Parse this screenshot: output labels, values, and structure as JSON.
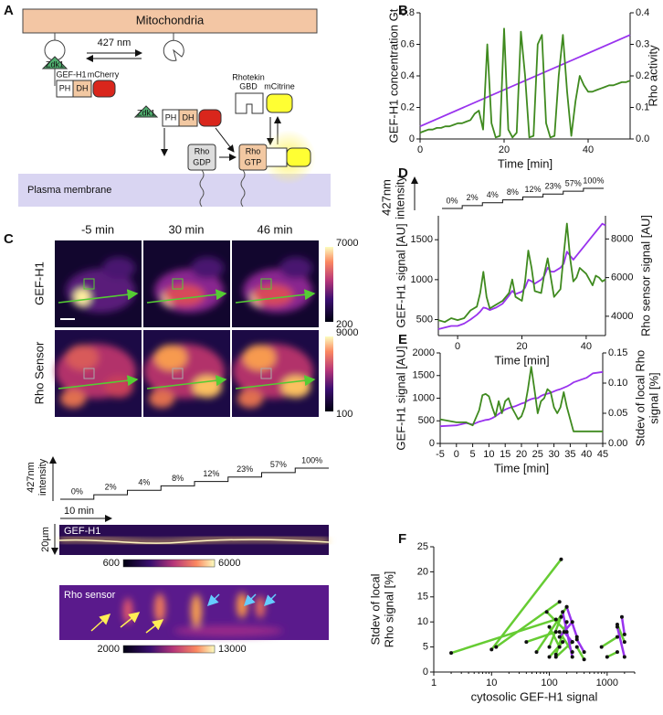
{
  "panel_labels": [
    "A",
    "B",
    "C",
    "D",
    "E",
    "F"
  ],
  "diagram": {
    "organelle": "Mitochondria",
    "light": "427 nm",
    "anchors": [
      "Zdk1",
      "Zdk1"
    ],
    "gef": "GEF-H1",
    "gef_tag": "mCherry",
    "domains": [
      "PH",
      "DH"
    ],
    "domains_bound": [
      "PH",
      "DH"
    ],
    "sensor_gbd": [
      "Rhotekin",
      "GBD"
    ],
    "sensor_tag": "mCitrine",
    "rho_gdp": [
      "Rho",
      "GDP"
    ],
    "rho_gtp": [
      "Rho",
      "GTP"
    ],
    "membrane": "Plasma membrane"
  },
  "imaging": {
    "times": [
      "-5 min",
      "30 min",
      "46 min"
    ],
    "rows": [
      "GEF-H1",
      "Rho Sensor"
    ],
    "colorbars": [
      {
        "max": 7000,
        "min": 200
      },
      {
        "max": 9000,
        "min": 100
      }
    ]
  },
  "kymograph": {
    "stim_label": [
      "427nm",
      "intensity"
    ],
    "steps": [
      "0%",
      "2%",
      "4%",
      "8%",
      "12%",
      "23%",
      "57%",
      "100%"
    ],
    "time_scale": "10 min",
    "space_scale": "20µm",
    "channels": [
      {
        "name": "GEF-H1",
        "min": 600,
        "max": 6000
      },
      {
        "name": "Rho sensor",
        "min": 2000,
        "max": 13000
      }
    ]
  },
  "chart_data": [
    {
      "type": "line",
      "xlabel": "Time [min]",
      "ylabel": [
        "GEF-H1 concentration Gt"
      ],
      "y2label": [
        "Rho activity"
      ],
      "xlim": [
        0,
        50
      ],
      "xticks": [
        0,
        20,
        40
      ],
      "ylim": [
        0,
        0.8
      ],
      "yticks": [
        0,
        0.2,
        0.4,
        0.6,
        0.8
      ],
      "y2lim": [
        0,
        0.4
      ],
      "y2ticks": [
        {
          "value": 0,
          "label": "0.0"
        },
        0.1,
        0.2,
        0.3,
        0.4
      ],
      "series": [
        {
          "color": "#9933ee",
          "x": [
            0,
            50
          ],
          "values": [
            0.08,
            0.66
          ]
        },
        {
          "color": "#3f8a1f",
          "axis": "y2",
          "x": [
            0,
            1,
            2,
            3,
            4,
            5,
            6,
            7,
            8,
            9,
            10,
            11,
            12,
            13,
            14,
            15,
            16,
            17,
            18,
            19,
            20,
            21,
            22,
            23,
            24,
            25,
            26,
            27,
            28,
            29,
            30,
            31,
            32,
            33,
            34,
            35,
            36,
            37,
            38,
            39,
            40,
            41,
            42,
            43,
            44,
            45,
            46,
            47,
            48,
            49,
            50
          ],
          "values": [
            0.02,
            0.025,
            0.03,
            0.03,
            0.035,
            0.035,
            0.04,
            0.04,
            0.045,
            0.05,
            0.05,
            0.055,
            0.06,
            0.08,
            0.09,
            0.03,
            0.3,
            0.05,
            0.005,
            0.01,
            0.35,
            0.03,
            0.005,
            0.02,
            0.34,
            0.2,
            0.005,
            0.01,
            0.3,
            0.33,
            0.05,
            0.005,
            0.01,
            0.2,
            0.33,
            0.15,
            0.01,
            0.12,
            0.2,
            0.17,
            0.15,
            0.15,
            0.155,
            0.16,
            0.165,
            0.17,
            0.17,
            0.175,
            0.18,
            0.18,
            0.185
          ]
        }
      ]
    },
    {
      "type": "line",
      "xlabel": "Time [min]",
      "ylabel": [
        "GEF-H1 signal [AU]"
      ],
      "y2label": [
        "Rho sensor signal [AU]"
      ],
      "stim_label": [
        "427nm",
        "intensity"
      ],
      "steps": [
        "0%",
        "2%",
        "4%",
        "8%",
        "12%",
        "23%",
        "57%",
        "100%"
      ],
      "xlim": [
        -6,
        46
      ],
      "xticks": [
        0,
        20,
        40
      ],
      "ylim": [
        300,
        1800
      ],
      "yticks": [
        500,
        1000,
        1500
      ],
      "y2lim": [
        3000,
        9200
      ],
      "y2ticks": [
        4000,
        6000,
        8000
      ],
      "series": [
        {
          "color": "#9933ee",
          "x": [
            -6,
            -4,
            -2,
            0,
            2,
            4,
            6,
            7,
            8,
            9,
            10,
            12,
            14,
            16,
            17,
            18,
            20,
            21,
            22,
            23,
            24,
            26,
            27,
            28,
            29,
            30,
            32,
            33,
            34,
            35,
            36,
            37,
            38,
            40,
            42,
            43,
            44,
            45,
            46
          ],
          "values": [
            380,
            400,
            420,
            420,
            450,
            500,
            560,
            600,
            650,
            640,
            620,
            650,
            700,
            800,
            860,
            820,
            850,
            900,
            1000,
            980,
            950,
            1000,
            1050,
            1150,
            1100,
            1100,
            1150,
            1200,
            1350,
            1300,
            1250,
            1300,
            1350,
            1450,
            1550,
            1600,
            1650,
            1700,
            1680
          ]
        },
        {
          "color": "#3f8a1f",
          "axis": "y2",
          "x": [
            -6,
            -4,
            -2,
            0,
            2,
            4,
            6,
            7,
            8,
            9,
            10,
            12,
            14,
            16,
            17,
            18,
            20,
            21,
            22,
            23,
            24,
            26,
            27,
            28,
            29,
            30,
            32,
            33,
            34,
            35,
            36,
            37,
            38,
            40,
            42,
            43,
            44,
            45,
            46
          ],
          "values": [
            3800,
            3700,
            3900,
            3800,
            3900,
            4300,
            4500,
            5200,
            6300,
            5000,
            4400,
            4600,
            4800,
            5200,
            5900,
            5000,
            4800,
            5800,
            7400,
            6500,
            5300,
            5200,
            6200,
            7000,
            6000,
            5000,
            5400,
            7200,
            8800,
            7000,
            5800,
            6000,
            6500,
            6200,
            5600,
            6100,
            6000,
            5800,
            5900
          ]
        }
      ]
    },
    {
      "type": "line",
      "xlabel": "Time [min]",
      "ylabel": [
        "GEF-H1 signal [AU]"
      ],
      "y2label": [
        "Stdev of local Rho",
        "signal [%]"
      ],
      "xlim": [
        -5,
        45
      ],
      "xticks": [
        -5,
        0,
        5,
        10,
        15,
        20,
        25,
        30,
        35,
        40,
        45
      ],
      "ylim": [
        0,
        2000
      ],
      "yticks": [
        0,
        500,
        1000,
        1500,
        2000
      ],
      "y2lim": [
        0,
        0.15
      ],
      "y2ticks": [
        {
          "value": 0,
          "label": "0.00"
        },
        {
          "value": 0.05,
          "label": "0.05"
        },
        {
          "value": 0.1,
          "label": "0.10"
        },
        {
          "value": 0.15,
          "label": "0.15"
        }
      ],
      "series": [
        {
          "color": "#9933ee",
          "x": [
            -5,
            0,
            3,
            5,
            7,
            8,
            9,
            10,
            11,
            12,
            13,
            14,
            15,
            16,
            17,
            18,
            19,
            20,
            21,
            22,
            23,
            24,
            25,
            26,
            27,
            28,
            29,
            30,
            31,
            32,
            33,
            34,
            35,
            36,
            38,
            40,
            42,
            45
          ],
          "values": [
            380,
            400,
            450,
            420,
            480,
            500,
            520,
            530,
            560,
            600,
            650,
            700,
            750,
            780,
            800,
            820,
            850,
            880,
            900,
            950,
            980,
            1000,
            1000,
            1050,
            1080,
            1100,
            1120,
            1150,
            1180,
            1200,
            1230,
            1260,
            1300,
            1350,
            1400,
            1450,
            1550,
            1580
          ]
        },
        {
          "color": "#3f8a1f",
          "axis": "y2",
          "x": [
            -5,
            0,
            3,
            5,
            7,
            8,
            9,
            10,
            11,
            12,
            13,
            14,
            15,
            16,
            17,
            18,
            19,
            20,
            21,
            22,
            23,
            24,
            25,
            26,
            27,
            28,
            29,
            30,
            31,
            32,
            33,
            34,
            35,
            36,
            38,
            40,
            42,
            45
          ],
          "values": [
            0.04,
            0.035,
            0.035,
            0.03,
            0.055,
            0.08,
            0.082,
            0.078,
            0.06,
            0.045,
            0.07,
            0.05,
            0.07,
            0.075,
            0.06,
            0.05,
            0.04,
            0.045,
            0.06,
            0.09,
            0.127,
            0.09,
            0.05,
            0.07,
            0.075,
            0.09,
            0.085,
            0.06,
            0.05,
            0.06,
            0.085,
            0.06,
            0.04,
            0.02,
            0.02,
            0.02,
            0.02,
            0.02
          ]
        }
      ]
    },
    {
      "type": "scatter",
      "xlabel": "cytosolic GEF-H1 signal",
      "ylabel": [
        "Stdev of local",
        "Rho signal [%]"
      ],
      "log_x": true,
      "xlim": [
        1,
        3000
      ],
      "xticks": [
        1,
        10,
        100,
        1000
      ],
      "ylim": [
        0,
        25
      ],
      "yticks": [
        0,
        5,
        10,
        15,
        20,
        25
      ],
      "point_color": "#111111",
      "series": [
        {
          "color": "#66cc33",
          "x": [
            2,
            130,
            10,
            160,
            12,
            150,
            40,
            130,
            60,
            200,
            90,
            200,
            100,
            170,
            100,
            150,
            150,
            250,
            130,
            250,
            100,
            160,
            200,
            130,
            800,
            1500,
            1000,
            1500,
            1500,
            2000,
            300,
            400
          ],
          "values": [
            3.8,
            10.5,
            4.5,
            22.5,
            5,
            14,
            6,
            8,
            4,
            13,
            12,
            8,
            3,
            6,
            9,
            5,
            8,
            4,
            3,
            6,
            5,
            11,
            10,
            3.5,
            5,
            7,
            3,
            4,
            9.5,
            6,
            5,
            2.5
          ]
        },
        {
          "color": "#9933ee",
          "x": [
            170,
            250,
            180,
            250,
            200,
            300,
            1500,
            2000,
            1800,
            2000,
            300,
            400,
            250,
            150
          ],
          "values": [
            12,
            3,
            8,
            6,
            13,
            7,
            9,
            3,
            11,
            7.5,
            6.5,
            4,
            10,
            7
          ]
        }
      ]
    }
  ]
}
